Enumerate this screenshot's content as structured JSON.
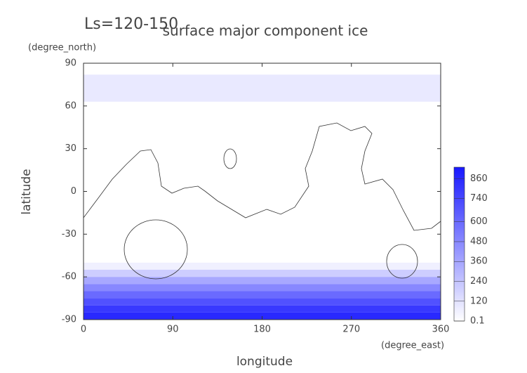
{
  "chart_data": {
    "type": "contour",
    "subtitle": "Ls=120-150",
    "title": "surface major component ice",
    "y_unit": "(degree_north)",
    "y_label": "latitude",
    "x_unit": "(degree_east)",
    "x_label": "longitude",
    "xlim": [
      0,
      360
    ],
    "xticks": [
      0,
      90,
      180,
      270,
      360
    ],
    "ylim": [
      -90,
      90
    ],
    "yticks": [
      -90,
      -60,
      -30,
      0,
      30,
      60,
      90
    ],
    "clim": [
      0.1,
      930
    ],
    "cticks": [
      0.1,
      120,
      240,
      360,
      480,
      600,
      740,
      860
    ],
    "color": "#1818ff",
    "regions": [
      {
        "lat_edges": [
          82,
          63
        ],
        "values": [
          90
        ]
      },
      {
        "lat_edges": [
          -50,
          -55,
          -60,
          -65,
          -70,
          -75,
          -80,
          -85,
          -90
        ],
        "values": [
          60,
          200,
          350,
          480,
          600,
          700,
          800,
          860
        ]
      }
    ]
  }
}
